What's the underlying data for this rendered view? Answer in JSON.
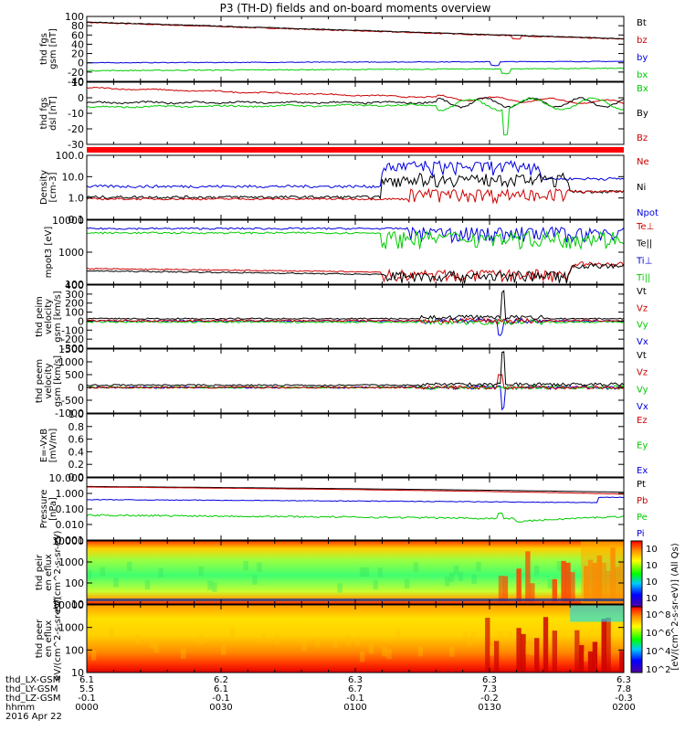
{
  "title": "P3 (TH-D) fields and on-board moments overview",
  "colors": {
    "black": "#000000",
    "red": "#cc0000",
    "green": "#00cc00",
    "blue": "#0000dd",
    "band": "#ff0000"
  },
  "time_axis": {
    "ticks": [
      "0000",
      "0030",
      "0100",
      "0130",
      "0200"
    ],
    "rows": [
      {
        "label": "thd_LX-GSM",
        "values": [
          "6.1",
          "6.2",
          "6.3",
          "6.3",
          "6.3"
        ]
      },
      {
        "label": "thd_LY-GSM",
        "values": [
          "5.5",
          "6.1",
          "6.7",
          "7.3",
          "7.8"
        ]
      },
      {
        "label": "thd_LZ-GSM",
        "values": [
          "-0.1",
          "-0.1",
          "-0.1",
          "-0.2",
          "-0.3"
        ]
      },
      {
        "label": "hhmm",
        "values": [
          "0000",
          "0030",
          "0100",
          "0130",
          "0200"
        ]
      }
    ],
    "date": "2016 Apr 22"
  },
  "colorbar": {
    "label": "[eV/(cm^2-s-sr-eV)] (All Qs)",
    "ticks_top": [
      "10^8",
      "10^6",
      "10^4",
      "10^2"
    ],
    "ticks_bottom": [
      "10^8",
      "10^6",
      "10^4",
      "10^2"
    ]
  },
  "chart_data": [
    {
      "type": "line",
      "ylabel": "thd fgs gsm [nT]",
      "yticks": [
        "100",
        "80",
        "60",
        "40",
        "20",
        "0",
        "-20",
        "-40"
      ],
      "ylim": [
        -40,
        100
      ],
      "series": [
        {
          "name": "Bt",
          "color": "black",
          "start": 88,
          "end": 50
        },
        {
          "name": "bz",
          "color": "red",
          "start": 87,
          "end": 48
        },
        {
          "name": "by",
          "color": "blue",
          "start": 0,
          "end": 3
        },
        {
          "name": "bx",
          "color": "green",
          "start": -18,
          "end": -12
        }
      ]
    },
    {
      "type": "line",
      "ylabel": "thd fgs dsl [nT]",
      "yticks": [
        "10",
        "0",
        "-10",
        "-20",
        "-30"
      ],
      "ylim": [
        -35,
        20
      ],
      "series": [
        {
          "name": "Bx",
          "color": "green",
          "start": -3,
          "end": 3
        },
        {
          "name": "By",
          "color": "black",
          "start": 2,
          "end": 2
        },
        {
          "name": "Bz",
          "color": "red",
          "start": 15,
          "end": 2
        }
      ]
    },
    {
      "type": "bar_status",
      "ylabel": ""
    },
    {
      "type": "line",
      "ylabel": "Density [cm-3]",
      "yticks": [
        "100.0",
        "10.0",
        "1.0",
        "0.1"
      ],
      "yscale": "log",
      "ylim": [
        0.1,
        100
      ],
      "series": [
        {
          "name": "Ne",
          "color": "red"
        },
        {
          "name": "Ni",
          "color": "black"
        },
        {
          "name": "Npot",
          "color": "blue"
        }
      ]
    },
    {
      "type": "line",
      "ylabel": "mpot3 [eV]",
      "yticks": [
        "10000",
        "1000",
        "100"
      ],
      "yscale": "log",
      "ylim": [
        50,
        10000
      ],
      "series": [
        {
          "name": "Te⊥",
          "color": "red"
        },
        {
          "name": "Te||",
          "color": "black"
        },
        {
          "name": "Ti⊥",
          "color": "blue"
        },
        {
          "name": "Ti||",
          "color": "green"
        }
      ]
    },
    {
      "type": "line",
      "ylabel": "thd peim velocity gsm [km/s]",
      "yticks": [
        "400",
        "300",
        "200",
        "100",
        "0",
        "-100",
        "-200",
        "-300"
      ],
      "ylim": [
        -300,
        400
      ],
      "series": [
        {
          "name": "Vt",
          "color": "black"
        },
        {
          "name": "Vz",
          "color": "red"
        },
        {
          "name": "Vy",
          "color": "green"
        },
        {
          "name": "Vx",
          "color": "blue"
        }
      ]
    },
    {
      "type": "line",
      "ylabel": "thd peem velocity gsm [km/s]",
      "yticks": [
        "1500",
        "1000",
        "500",
        "0",
        "-500",
        "-1000"
      ],
      "ylim": [
        -1000,
        1500
      ],
      "series": [
        {
          "name": "Vt",
          "color": "black"
        },
        {
          "name": "Vz",
          "color": "red"
        },
        {
          "name": "Vy",
          "color": "green"
        },
        {
          "name": "Vx",
          "color": "blue"
        }
      ]
    },
    {
      "type": "line",
      "ylabel": "E=-VxB [mV/m]",
      "yticks": [
        "1.0",
        "0.8",
        "0.6",
        "0.4",
        "0.2",
        "0.0"
      ],
      "ylim": [
        0,
        1
      ],
      "series": [
        {
          "name": "Ez",
          "color": "red"
        },
        {
          "name": "Ey",
          "color": "green"
        },
        {
          "name": "Ex",
          "color": "blue"
        }
      ]
    },
    {
      "type": "line",
      "ylabel": "Pressure [nPa]",
      "yticks": [
        "10.000",
        "1.000",
        "0.100",
        "0.010",
        "0.001"
      ],
      "yscale": "log",
      "ylim": [
        0.001,
        10
      ],
      "series": [
        {
          "name": "Pt",
          "color": "black"
        },
        {
          "name": "Pb",
          "color": "red"
        },
        {
          "name": "Pe",
          "color": "green"
        },
        {
          "name": "Pi",
          "color": "blue"
        }
      ]
    },
    {
      "type": "heatmap",
      "ylabel": "thd peir en eflux eV/(cm^2-s-sr-eV)",
      "yticks": [
        "10000",
        "1000",
        "100",
        "10"
      ],
      "yscale": "log"
    },
    {
      "type": "heatmap",
      "ylabel": "thd peer en eflux eV/(cm^2-s-sr-eV)",
      "yticks": [
        "10000",
        "1000",
        "100",
        "10"
      ],
      "yscale": "log"
    }
  ]
}
